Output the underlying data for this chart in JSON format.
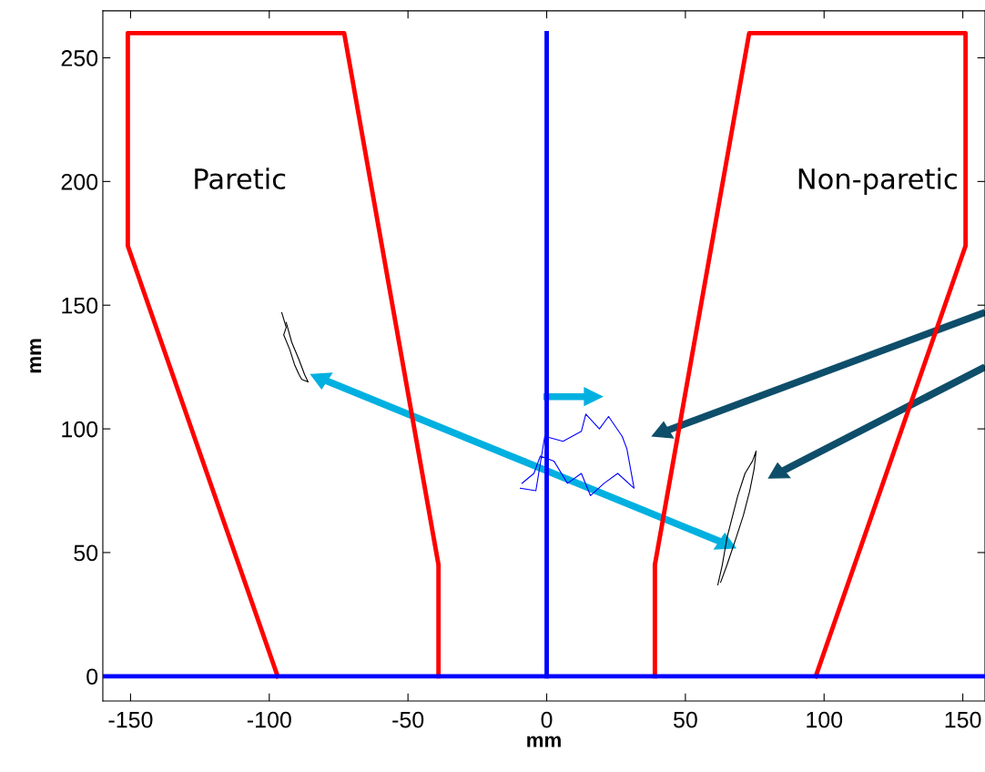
{
  "chart_data": {
    "type": "line",
    "xlabel": "mm",
    "ylabel": "mm",
    "xlim": [
      -160,
      158
    ],
    "ylim": [
      -10,
      269
    ],
    "xticks": [
      -150,
      -100,
      -50,
      0,
      50,
      100,
      150
    ],
    "yticks": [
      0,
      50,
      100,
      150,
      200,
      250
    ],
    "grid": false,
    "legend": false,
    "marker": "none",
    "line_style": "solid",
    "annotations": [
      "Paretic",
      "Non-paretic"
    ],
    "series": [
      {
        "color": "#ff0000",
        "x": [
          -97,
          -151,
          -151,
          -73,
          -39,
          -39
        ],
        "values": [
          0,
          174,
          260,
          260,
          45,
          0
        ]
      },
      {
        "color": "#ff0000",
        "x": [
          97,
          151,
          151,
          73,
          39,
          39
        ],
        "values": [
          0,
          174,
          260,
          260,
          45,
          0
        ]
      },
      {
        "color": "#0000ff",
        "x": [
          0,
          0
        ],
        "values": [
          0,
          260
        ]
      },
      {
        "color": "#0000ff",
        "x": [
          -160,
          158
        ],
        "values": [
          0,
          0
        ]
      },
      {
        "color": "#000000",
        "x": [
          -95.5,
          -93.9,
          -94.8,
          -92.6,
          -90.9,
          -89.3,
          -88.3,
          -86.0,
          -87.3,
          -89.3,
          -91.9,
          -93.9
        ],
        "values": [
          147,
          141,
          138,
          132,
          126,
          122,
          120,
          119,
          122,
          128,
          135,
          143
        ]
      },
      {
        "color": "#000000",
        "x": [
          61.7,
          63.3,
          65.0,
          66.6,
          68.9,
          71.5,
          74.2,
          75.5,
          74.8,
          73.2,
          70.9,
          68.3,
          65.0,
          62.7
        ],
        "values": [
          37,
          45,
          56,
          63,
          73,
          82,
          87,
          91,
          84,
          75,
          65,
          56,
          45,
          38
        ]
      },
      {
        "color": "#0000ff",
        "x": [
          -9.5,
          -3.9,
          -0.7,
          5.9,
          12.5,
          14.1,
          19.0,
          22.3,
          27.2,
          28.9,
          31.5,
          25.6,
          20.7,
          15.8,
          12.5,
          7.5,
          2.6,
          -2.3,
          -4.6,
          -8.9
        ],
        "values": [
          76,
          75,
          97,
          95,
          99,
          106,
          100,
          105,
          97,
          92,
          76,
          82,
          78,
          73,
          82,
          78,
          87,
          89,
          82,
          78
        ]
      }
    ]
  }
}
